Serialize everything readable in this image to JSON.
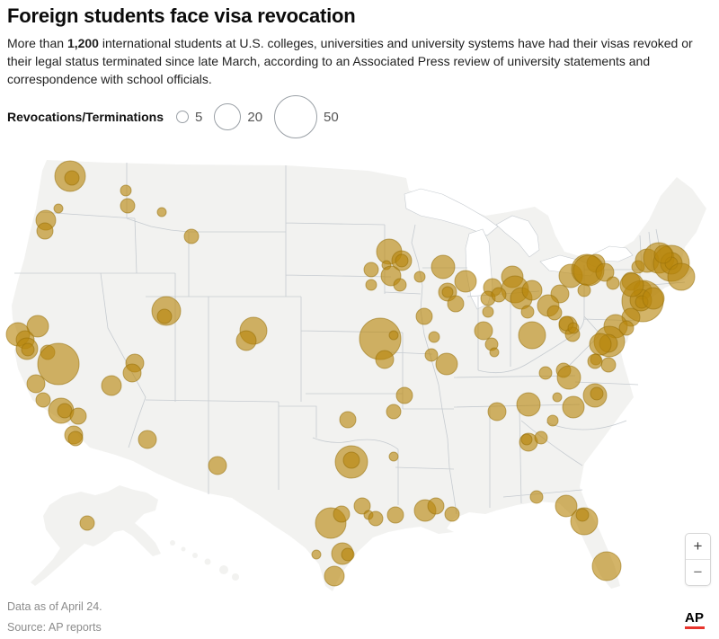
{
  "header": {
    "title": "Foreign students face visa revocation",
    "intro_prefix": "More than ",
    "intro_bold": "1,200",
    "intro_suffix": " international students at U.S. colleges, universities and university systems have had their visas revoked or their legal status terminated since late March, according to an Associated Press review of university statements and correspondence with school officials."
  },
  "legend": {
    "label": "Revocations/Terminations",
    "items": [
      {
        "value": "5",
        "r": 7
      },
      {
        "value": "20",
        "r": 15
      },
      {
        "value": "50",
        "r": 24
      }
    ]
  },
  "map_controls": {
    "zoom_in": "+",
    "zoom_out": "−"
  },
  "footer": {
    "note": "Data as of April 24.",
    "source": "Source: AP reports",
    "logo_text": "AP"
  },
  "colors": {
    "bubble_fill": "#b8860b",
    "bubble_stroke": "#96700a",
    "land": "#f2f2f0",
    "border": "#c6cbd0",
    "logo_red": "#e8342c"
  },
  "chart_data": {
    "type": "bubble-map",
    "region": "United States (contiguous states, Alaska, Hawaii)",
    "title": "Foreign students face visa revocation",
    "metric": "Revocations/Terminations per campus location",
    "legend_scale": [
      {
        "value": 5,
        "radius_px": 7
      },
      {
        "value": 20,
        "radius_px": 15
      },
      {
        "value": 50,
        "radius_px": 24
      }
    ],
    "bubble_format": "[x_px, y_px, radius_px, approx_value]",
    "bubbles": [
      [
        78,
        196,
        17,
        30
      ],
      [
        80,
        198,
        8,
        7
      ],
      [
        65,
        232,
        5,
        3
      ],
      [
        51,
        245,
        11,
        12
      ],
      [
        50,
        257,
        9,
        8
      ],
      [
        140,
        212,
        6,
        4
      ],
      [
        142,
        229,
        8,
        7
      ],
      [
        180,
        236,
        5,
        3
      ],
      [
        213,
        263,
        8,
        7
      ],
      [
        42,
        363,
        12,
        15
      ],
      [
        20,
        372,
        13,
        17
      ],
      [
        28,
        378,
        10,
        10
      ],
      [
        30,
        388,
        12,
        15
      ],
      [
        31,
        389,
        7,
        5
      ],
      [
        53,
        392,
        8,
        7
      ],
      [
        65,
        405,
        23,
        54
      ],
      [
        40,
        427,
        10,
        10
      ],
      [
        48,
        445,
        8,
        7
      ],
      [
        68,
        457,
        14,
        20
      ],
      [
        72,
        457,
        8,
        7
      ],
      [
        87,
        463,
        9,
        8
      ],
      [
        82,
        484,
        10,
        10
      ],
      [
        84,
        488,
        8,
        7
      ],
      [
        150,
        404,
        10,
        10
      ],
      [
        147,
        415,
        10,
        10
      ],
      [
        124,
        429,
        11,
        12
      ],
      [
        164,
        489,
        10,
        10
      ],
      [
        185,
        346,
        16,
        26
      ],
      [
        183,
        352,
        8,
        7
      ],
      [
        282,
        368,
        15,
        23
      ],
      [
        274,
        379,
        11,
        12
      ],
      [
        242,
        518,
        10,
        10
      ],
      [
        97,
        582,
        8,
        7
      ],
      [
        433,
        280,
        14,
        20
      ],
      [
        447,
        290,
        11,
        12
      ],
      [
        447,
        290,
        7,
        5
      ],
      [
        430,
        295,
        5,
        3
      ],
      [
        435,
        307,
        11,
        12
      ],
      [
        445,
        317,
        7,
        5
      ],
      [
        413,
        300,
        8,
        7
      ],
      [
        413,
        317,
        6,
        4
      ],
      [
        467,
        308,
        6,
        4
      ],
      [
        493,
        297,
        13,
        17
      ],
      [
        518,
        313,
        12,
        15
      ],
      [
        498,
        325,
        10,
        10
      ],
      [
        498,
        325,
        6,
        4
      ],
      [
        507,
        338,
        9,
        8
      ],
      [
        472,
        352,
        9,
        8
      ],
      [
        483,
        375,
        6,
        4
      ],
      [
        423,
        377,
        23,
        54
      ],
      [
        438,
        373,
        5,
        3
      ],
      [
        428,
        400,
        10,
        10
      ],
      [
        480,
        395,
        7,
        5
      ],
      [
        497,
        405,
        12,
        15
      ],
      [
        387,
        467,
        9,
        8
      ],
      [
        450,
        440,
        9,
        8
      ],
      [
        438,
        458,
        8,
        7
      ],
      [
        438,
        508,
        5,
        3
      ],
      [
        391,
        514,
        18,
        33
      ],
      [
        391,
        512,
        9,
        8
      ],
      [
        368,
        582,
        17,
        30
      ],
      [
        380,
        572,
        9,
        8
      ],
      [
        403,
        563,
        9,
        8
      ],
      [
        410,
        573,
        5,
        3
      ],
      [
        418,
        577,
        8,
        7
      ],
      [
        440,
        573,
        9,
        8
      ],
      [
        473,
        568,
        12,
        15
      ],
      [
        485,
        563,
        9,
        8
      ],
      [
        503,
        572,
        8,
        7
      ],
      [
        352,
        617,
        5,
        3
      ],
      [
        381,
        616,
        12,
        15
      ],
      [
        387,
        617,
        7,
        5
      ],
      [
        372,
        641,
        11,
        12
      ],
      [
        570,
        308,
        12,
        15
      ],
      [
        573,
        322,
        15,
        23
      ],
      [
        580,
        332,
        12,
        15
      ],
      [
        548,
        320,
        10,
        10
      ],
      [
        543,
        332,
        8,
        7
      ],
      [
        555,
        328,
        8,
        7
      ],
      [
        592,
        323,
        11,
        12
      ],
      [
        587,
        347,
        7,
        5
      ],
      [
        543,
        347,
        6,
        4
      ],
      [
        538,
        368,
        10,
        10
      ],
      [
        547,
        383,
        7,
        5
      ],
      [
        550,
        392,
        5,
        3
      ],
      [
        592,
        373,
        15,
        23
      ],
      [
        635,
        307,
        13,
        17
      ],
      [
        653,
        300,
        17,
        30
      ],
      [
        663,
        293,
        10,
        10
      ],
      [
        623,
        327,
        10,
        10
      ],
      [
        610,
        340,
        12,
        15
      ],
      [
        617,
        348,
        8,
        7
      ],
      [
        632,
        362,
        10,
        10
      ],
      [
        637,
        372,
        8,
        7
      ],
      [
        655,
        301,
        17,
        30
      ],
      [
        673,
        303,
        10,
        10
      ],
      [
        650,
        323,
        7,
        5
      ],
      [
        682,
        315,
        7,
        5
      ],
      [
        702,
        313,
        10,
        10
      ],
      [
        710,
        297,
        7,
        5
      ],
      [
        720,
        290,
        13,
        17
      ],
      [
        733,
        287,
        17,
        30
      ],
      [
        747,
        293,
        20,
        41
      ],
      [
        747,
        293,
        12,
        15
      ],
      [
        747,
        293,
        7,
        5
      ],
      [
        738,
        283,
        10,
        10
      ],
      [
        758,
        308,
        15,
        23
      ],
      [
        715,
        323,
        10,
        10
      ],
      [
        715,
        335,
        23,
        54
      ],
      [
        713,
        334,
        12,
        15
      ],
      [
        714,
        336,
        7,
        5
      ],
      [
        727,
        332,
        12,
        15
      ],
      [
        703,
        317,
        13,
        17
      ],
      [
        702,
        353,
        10,
        10
      ],
      [
        685,
        363,
        13,
        17
      ],
      [
        697,
        365,
        8,
        7
      ],
      [
        678,
        380,
        17,
        30
      ],
      [
        677,
        382,
        10,
        10
      ],
      [
        668,
        383,
        12,
        15
      ],
      [
        663,
        400,
        6,
        4
      ],
      [
        677,
        406,
        8,
        7
      ],
      [
        630,
        360,
        8,
        7
      ],
      [
        638,
        365,
        6,
        4
      ],
      [
        607,
        415,
        7,
        5
      ],
      [
        627,
        412,
        8,
        7
      ],
      [
        633,
        420,
        13,
        17
      ],
      [
        662,
        402,
        8,
        7
      ],
      [
        553,
        458,
        10,
        10
      ],
      [
        588,
        450,
        13,
        17
      ],
      [
        615,
        468,
        6,
        4
      ],
      [
        662,
        440,
        13,
        17
      ],
      [
        664,
        438,
        7,
        5
      ],
      [
        638,
        453,
        12,
        15
      ],
      [
        620,
        442,
        5,
        3
      ],
      [
        588,
        492,
        10,
        10
      ],
      [
        586,
        489,
        6,
        4
      ],
      [
        602,
        487,
        7,
        5
      ],
      [
        597,
        553,
        7,
        5
      ],
      [
        630,
        563,
        12,
        15
      ],
      [
        650,
        580,
        15,
        23
      ],
      [
        648,
        573,
        7,
        5
      ],
      [
        675,
        630,
        16,
        26
      ]
    ]
  }
}
